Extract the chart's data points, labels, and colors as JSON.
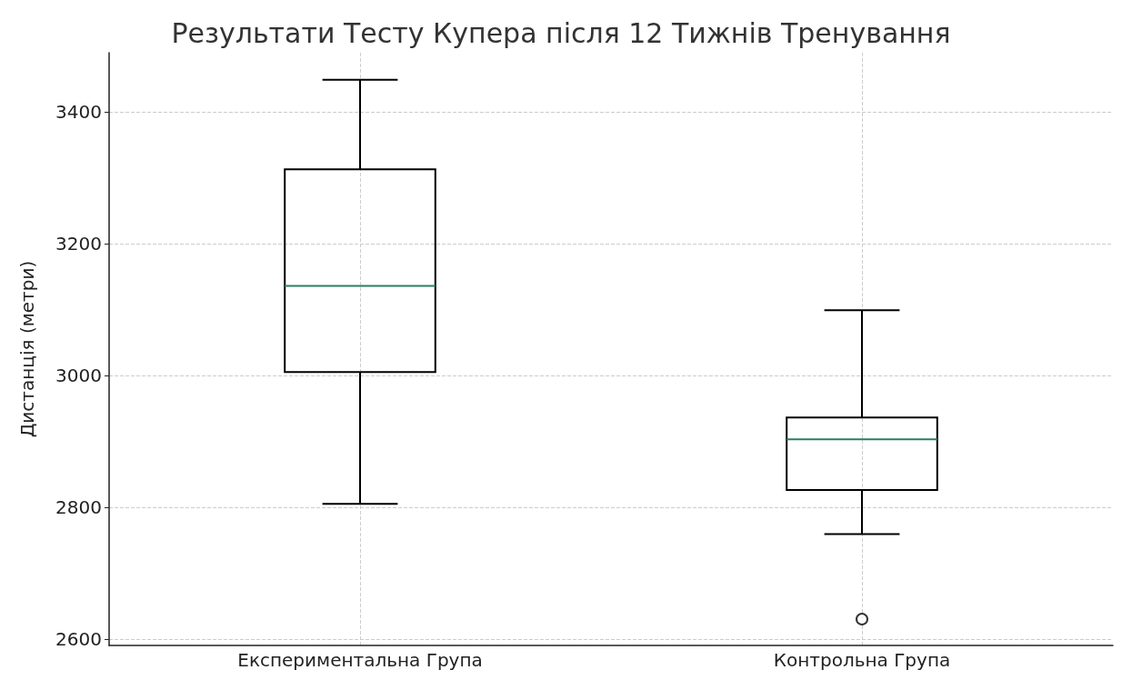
{
  "chart_data": {
    "type": "box",
    "title": "Результати Тесту Купера після 12 Тижнів Тренування",
    "ylabel": "Дистанція (метри)",
    "categories": [
      "Експериментальна Група",
      "Контрольна Група"
    ],
    "boxes": [
      {
        "low": 2805,
        "q1": 3005,
        "median": 3136,
        "q3": 3313,
        "high": 3449
      },
      {
        "low": 2759,
        "q1": 2826,
        "median": 2903,
        "q3": 2936,
        "high": 3099,
        "outliers": [
          2630
        ]
      }
    ],
    "color": "#000000",
    "ylim": [
      2590,
      3490
    ],
    "yticks": [
      2600,
      2800,
      3000,
      3200,
      3400
    ],
    "grid": true,
    "line_style": "dashed"
  }
}
